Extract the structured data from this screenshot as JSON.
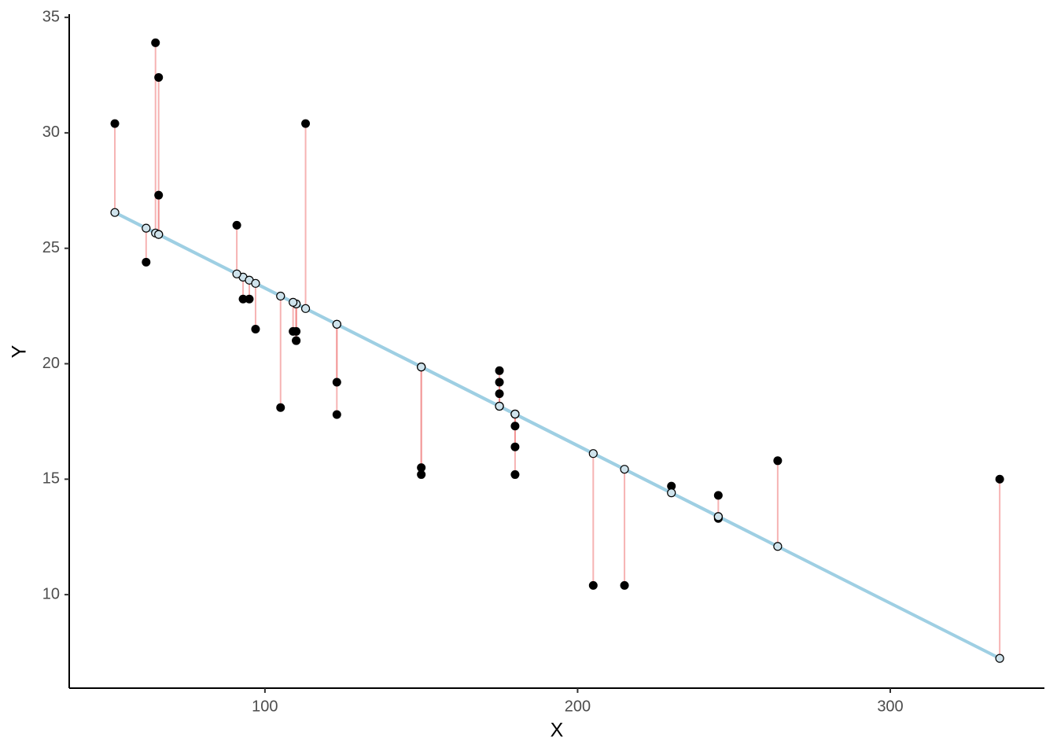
{
  "chart_data": {
    "type": "scatter",
    "x_label": "X",
    "y_label": "Y",
    "x": [
      110,
      110,
      93,
      110,
      175,
      105,
      245,
      62,
      95,
      123,
      123,
      180,
      180,
      180,
      205,
      215,
      230,
      66,
      52,
      65,
      97,
      150,
      150,
      245,
      175,
      66,
      91,
      113,
      264,
      175,
      335,
      109
    ],
    "values": [
      21.0,
      21.0,
      22.8,
      21.4,
      18.7,
      18.1,
      14.3,
      24.4,
      22.8,
      19.2,
      17.8,
      16.4,
      17.3,
      15.2,
      10.4,
      10.4,
      14.7,
      32.4,
      30.4,
      33.9,
      21.5,
      15.5,
      15.2,
      13.3,
      19.2,
      27.3,
      26.0,
      30.4,
      15.8,
      19.7,
      15.0,
      21.4
    ],
    "fitted_values": [
      22.59,
      22.59,
      23.75,
      22.59,
      18.16,
      22.93,
      13.38,
      25.87,
      23.62,
      21.71,
      21.71,
      17.82,
      17.82,
      17.82,
      16.11,
      15.43,
      14.41,
      25.6,
      26.55,
      25.66,
      23.48,
      19.86,
      19.86,
      13.38,
      18.16,
      25.6,
      23.89,
      22.39,
      12.09,
      18.16,
      7.24,
      22.66
    ],
    "color": "#000000",
    "fitted_color": "#cfe3ec",
    "line_color": "#9ecfe3",
    "residual_color": "#f08080",
    "xlim": [
      37.4,
      349.3
    ],
    "ylim": [
      5.95,
      35.14
    ],
    "xticks": [
      100,
      200,
      300
    ],
    "yticks": [
      10,
      15,
      20,
      25,
      30,
      35
    ]
  }
}
